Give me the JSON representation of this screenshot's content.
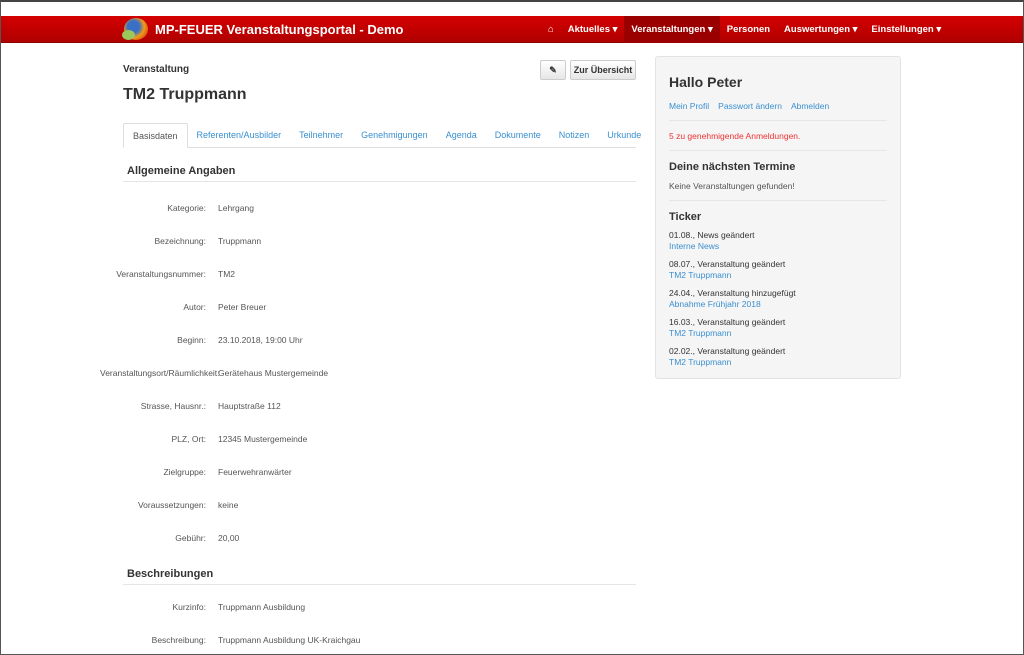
{
  "navbar": {
    "brand": "MP-FEUER Veranstaltungsportal - Demo",
    "items": [
      "Aktuelles ▾",
      "Veranstaltungen ▾",
      "Personen",
      "Auswertungen ▾",
      "Einstellungen ▾"
    ],
    "active": "Veranstaltungen",
    "color": "#c00000"
  },
  "header": {
    "breadcrumb": "Veranstaltung",
    "title": "TM2 Truppmann",
    "edit_icon": "pencil-icon",
    "overview_button": "Zur Übersicht"
  },
  "tabs": [
    "Basisdaten",
    "Referenten/Ausbilder",
    "Teilnehmer",
    "Genehmigungen",
    "Agenda",
    "Dokumente",
    "Notizen",
    "Urkunde"
  ],
  "sections": {
    "general": "Allgemeine Angaben",
    "descriptions": "Beschreibungen"
  },
  "fields": [
    {
      "label": "Kategorie:",
      "value": "Lehrgang"
    },
    {
      "label": "Bezeichnung:",
      "value": "Truppmann"
    },
    {
      "label": "Veranstaltungsnummer:",
      "value": "TM2"
    },
    {
      "label": "Autor:",
      "value": "Peter Breuer"
    },
    {
      "label": "Beginn:",
      "value": "23.10.2018, 19:00 Uhr"
    },
    {
      "label": "Veranstaltungsort/Räumlichkeit:",
      "value": "Gerätehaus Mustergemeinde"
    },
    {
      "label": "Strasse, Hausnr.:",
      "value": "Hauptstraße 112"
    },
    {
      "label": "PLZ, Ort:",
      "value": "12345 Mustergemeinde"
    },
    {
      "label": "Zielgruppe:",
      "value": "Feuerwehranwärter"
    },
    {
      "label": "Voraussetzungen:",
      "value": "keine"
    },
    {
      "label": "Gebühr:",
      "value": "20,00"
    }
  ],
  "descriptions": [
    {
      "label": "Kurzinfo:",
      "value": "Truppmann Ausbildung"
    },
    {
      "label": "Beschreibung:",
      "value": "Truppmann Ausbildung UK-Kraichgau"
    }
  ],
  "sidebar": {
    "greeting": "Hallo Peter",
    "links": [
      "Mein Profil",
      "Passwort ändern",
      "Abmelden"
    ],
    "warning": "5 zu genehmigende Anmeldungen.",
    "next_title": "Deine nächsten Termine",
    "next_empty": "Keine Veranstaltungen gefunden!",
    "ticker_title": "Ticker",
    "ticker": [
      {
        "text": "01.08., News geändert",
        "link": "Interne News"
      },
      {
        "text": "08.07., Veranstaltung geändert",
        "link": "TM2 Truppmann"
      },
      {
        "text": "24.04., Veranstaltung hinzugefügt",
        "link": "Abnahme Frühjahr 2018"
      },
      {
        "text": "16.03., Veranstaltung geändert",
        "link": "TM2 Truppmann"
      },
      {
        "text": "02.02., Veranstaltung geändert",
        "link": "TM2 Truppmann"
      }
    ]
  }
}
